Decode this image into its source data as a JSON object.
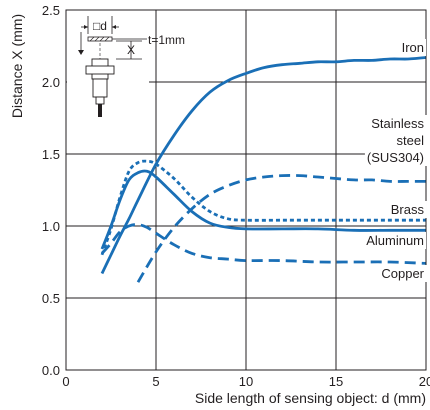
{
  "chart_data": {
    "type": "line",
    "xlabel": "Side length of sensing object: d (mm)",
    "ylabel": "Distance X (mm)",
    "xlim": [
      0,
      20
    ],
    "ylim": [
      0,
      2.5
    ],
    "xticks": [
      "0",
      "5",
      "10",
      "15",
      "20"
    ],
    "yticks": [
      "0.0",
      "0.5",
      "1.0",
      "1.5",
      "2.0",
      "2.5"
    ],
    "grid": true,
    "line_color": "#1a6fb6",
    "annotation": {
      "thickness_label": "t=1mm",
      "d_label": "□d",
      "x_label": "X"
    },
    "series": [
      {
        "name": "Iron",
        "style": "solid",
        "x": [
          2,
          2.5,
          3,
          3.5,
          4,
          5,
          6,
          7,
          8,
          9,
          10,
          11,
          12,
          13,
          14,
          15,
          16,
          17,
          18,
          19,
          20
        ],
        "y": [
          0.67,
          0.8,
          0.93,
          1.05,
          1.18,
          1.43,
          1.63,
          1.8,
          1.93,
          2.01,
          2.06,
          2.1,
          2.12,
          2.13,
          2.14,
          2.14,
          2.15,
          2.15,
          2.16,
          2.16,
          2.17
        ]
      },
      {
        "name": "Stainless steel (SUS304)",
        "label_lines": [
          "Stainless",
          "steel",
          "(SUS304)"
        ],
        "style": "dashed",
        "x": [
          4,
          5,
          6,
          7,
          8,
          9,
          10,
          11,
          12,
          13,
          14,
          15,
          16,
          17,
          18,
          19,
          20
        ],
        "y": [
          0.61,
          0.82,
          0.99,
          1.12,
          1.22,
          1.28,
          1.32,
          1.34,
          1.35,
          1.35,
          1.34,
          1.33,
          1.32,
          1.32,
          1.31,
          1.31,
          1.31
        ]
      },
      {
        "name": "Brass",
        "style": "dotted",
        "x": [
          2,
          2.5,
          3,
          3.5,
          4,
          4.5,
          5,
          6,
          7,
          8,
          9,
          10,
          12,
          14,
          16,
          18,
          20
        ],
        "y": [
          0.8,
          0.98,
          1.2,
          1.38,
          1.44,
          1.45,
          1.43,
          1.33,
          1.2,
          1.1,
          1.05,
          1.04,
          1.04,
          1.04,
          1.04,
          1.04,
          1.04
        ]
      },
      {
        "name": "Aluminum",
        "style": "solid",
        "x": [
          2,
          2.5,
          3,
          3.5,
          4,
          4.5,
          5,
          6,
          7,
          8,
          9,
          10,
          12,
          14,
          16,
          18,
          20
        ],
        "y": [
          0.84,
          1.0,
          1.18,
          1.32,
          1.37,
          1.38,
          1.34,
          1.22,
          1.1,
          1.02,
          0.99,
          0.98,
          0.98,
          0.98,
          0.97,
          0.97,
          0.97
        ]
      },
      {
        "name": "Copper",
        "style": "dashed",
        "x": [
          2,
          2.5,
          3,
          3.5,
          4,
          4.5,
          5,
          6,
          7,
          8,
          9,
          10,
          12,
          14,
          16,
          18,
          20
        ],
        "y": [
          0.81,
          0.88,
          0.96,
          1.0,
          1.01,
          0.99,
          0.95,
          0.87,
          0.81,
          0.78,
          0.77,
          0.76,
          0.76,
          0.75,
          0.75,
          0.75,
          0.74
        ]
      }
    ]
  }
}
